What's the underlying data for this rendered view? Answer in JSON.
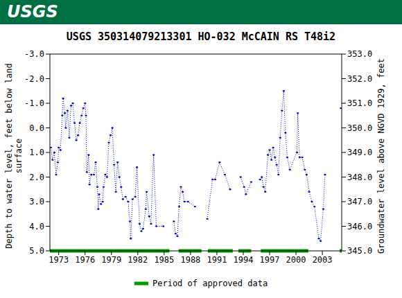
{
  "chart_data": {
    "type": "line",
    "logo": "USGS",
    "title": "USGS 350314079213301 HO-032 McCAIN RS T48i2",
    "y_label": [
      "Depth to water level, feet below land",
      "surface"
    ],
    "y2_label": "Groundwater level above NGVD 1929, feet",
    "x": [
      1972.1,
      1972.3,
      1972.5,
      1972.7,
      1972.9,
      1973.0,
      1973.2,
      1973.4,
      1973.5,
      1973.7,
      1973.8,
      1974.0,
      1974.2,
      1974.4,
      1974.6,
      1974.8,
      1975.0,
      1975.2,
      1975.4,
      1975.6,
      1975.8,
      1976.0,
      1976.1,
      1976.2,
      1976.4,
      1976.5,
      1976.7,
      1977.0,
      1977.2,
      1977.4,
      1977.5,
      1977.6,
      1977.8,
      1978.0,
      1978.1,
      1978.3,
      1978.5,
      1978.7,
      1978.9,
      1979.1,
      1979.3,
      1979.5,
      1979.7,
      1979.9,
      1980.1,
      1980.3,
      1980.6,
      1980.9,
      1981.1,
      1981.2,
      1981.4,
      1981.7,
      1981.9,
      1982.2,
      1982.4,
      1982.6,
      1982.9,
      1983.0,
      1983.3,
      1983.5,
      1983.8,
      1984.1,
      1984.9,
      1985.5,
      1986.1,
      1986.3,
      1986.5,
      1986.7,
      1986.9,
      1987.1,
      1987.3,
      1987.7,
      1988.5,
      1989.2,
      1989.9,
      1990.5,
      1990.8,
      1991.3,
      1991.9,
      1992.5,
      1993.1,
      1993.7,
      1994.1,
      1994.3,
      1994.9,
      1995.4,
      1995.9,
      1996.1,
      1996.3,
      1996.5,
      1996.8,
      1997.0,
      1997.2,
      1997.4,
      1997.6,
      1997.8,
      1998.0,
      1998.2,
      1998.4,
      1998.6,
      1998.8,
      1999.0,
      1999.3,
      2000.1,
      2000.2,
      2000.4,
      2000.7,
      2001.0,
      2001.2,
      2001.5,
      2001.8,
      2002.1,
      2002.6,
      2002.8,
      2003.1,
      2003.3,
      2004.2,
      2005.1
    ],
    "values": [
      0.8,
      1.3,
      1.0,
      1.9,
      1.4,
      0.8,
      0.9,
      -0.5,
      -1.2,
      -0.6,
      0.0,
      -0.7,
      0.4,
      -0.9,
      -1.0,
      -0.2,
      0.5,
      0.3,
      -0.2,
      -0.5,
      -0.8,
      -1.0,
      -0.5,
      1.8,
      1.1,
      2.3,
      1.9,
      1.9,
      1.4,
      2.4,
      3.3,
      2.7,
      3.1,
      3.0,
      2.4,
      1.9,
      2.0,
      0.6,
      0.3,
      0.0,
      1.5,
      2.6,
      1.4,
      2.0,
      2.4,
      2.9,
      2.8,
      3.0,
      3.8,
      4.5,
      2.9,
      2.8,
      1.6,
      3.9,
      4.2,
      4.1,
      3.3,
      2.6,
      3.6,
      3.9,
      1.1,
      4.0,
      4.0,
      null,
      3.8,
      4.3,
      4.4,
      3.2,
      2.4,
      2.6,
      3.0,
      3.0,
      3.2,
      null,
      3.7,
      2.1,
      2.1,
      1.4,
      1.9,
      2.5,
      null,
      2.0,
      2.4,
      2.7,
      2.2,
      null,
      2.1,
      2.0,
      2.4,
      2.6,
      1.1,
      0.9,
      1.3,
      0.8,
      1.2,
      1.5,
      1.9,
      0.4,
      -0.7,
      -1.5,
      0.2,
      1.2,
      1.7,
      1.0,
      -0.6,
      1.2,
      1.2,
      1.7,
      1.9,
      2.6,
      3.0,
      3.2,
      4.5,
      4.6,
      3.3,
      1.9,
      null,
      -0.8
    ],
    "color": "#0000cc",
    "line_style": "dotted",
    "marker": "dot",
    "xlim": [
      1972,
      2005.2
    ],
    "xticks": [
      1973,
      1976,
      1979,
      1982,
      1985,
      1988,
      1991,
      1994,
      1997,
      2000,
      2003
    ],
    "ylim": [
      5,
      -3
    ],
    "yticks": [
      {
        "value": -3,
        "label": "-3.0"
      },
      {
        "value": -2,
        "label": "-2.0"
      },
      {
        "value": -1,
        "label": "-1.0"
      },
      {
        "value": 0,
        "label": "0.0"
      },
      {
        "value": 1,
        "label": "1.0"
      },
      {
        "value": 2,
        "label": "2.0"
      },
      {
        "value": 3,
        "label": "3.0"
      },
      {
        "value": 4,
        "label": "4.0"
      },
      {
        "value": 5,
        "label": "5.0"
      }
    ],
    "y2lim": [
      345,
      353
    ],
    "y2ticks": [
      {
        "value": 345,
        "label": "345.0"
      },
      {
        "value": 346,
        "label": "346.0"
      },
      {
        "value": 347,
        "label": "347.0"
      },
      {
        "value": 348,
        "label": "348.0"
      },
      {
        "value": 349,
        "label": "349.0"
      },
      {
        "value": 350,
        "label": "350.0"
      },
      {
        "value": 351,
        "label": "351.0"
      },
      {
        "value": 352,
        "label": "352.0"
      },
      {
        "value": 353,
        "label": "353.0"
      }
    ],
    "approved_periods": {
      "label": "Period of approved data",
      "color": "#009900",
      "ranges": [
        [
          1972,
          1985.6
        ],
        [
          1986.65,
          1989.25
        ],
        [
          1989.97,
          1992.8
        ],
        [
          1993.45,
          1994.9
        ],
        [
          1996.0,
          2001.4
        ],
        [
          2004.97,
          2005.2
        ]
      ]
    }
  }
}
